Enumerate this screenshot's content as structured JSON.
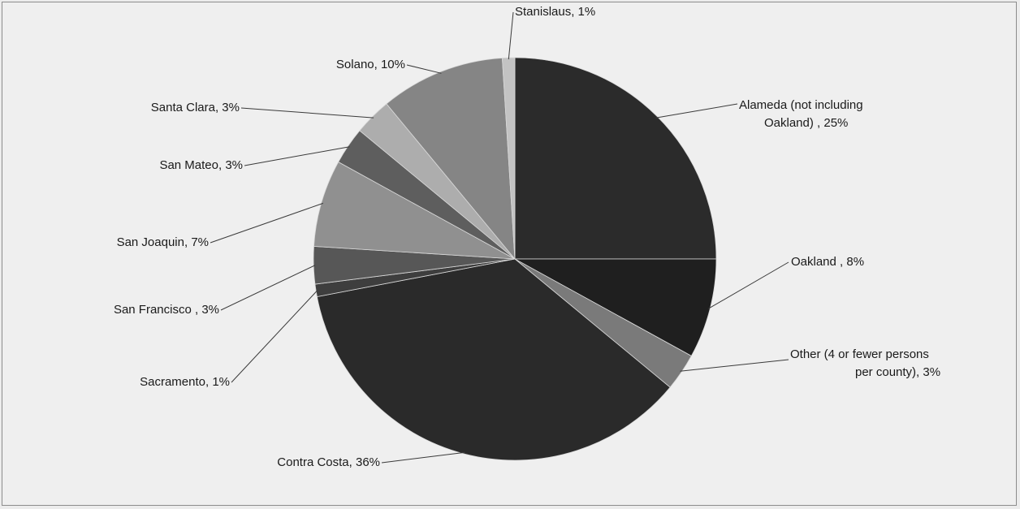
{
  "chart_data": {
    "type": "pie",
    "title": "",
    "start_angle_deg": 0,
    "direction": "clockwise",
    "slices": [
      {
        "label": [
          "Alameda (not including",
          "Oakland) , 25%"
        ],
        "value": 25,
        "color": "#2b2b2b"
      },
      {
        "label": [
          "Oakland , 8%"
        ],
        "value": 8,
        "color": "#1f1f1f"
      },
      {
        "label": [
          "Other (4 or fewer persons",
          "per county), 3%"
        ],
        "value": 3,
        "color": "#7a7a7a"
      },
      {
        "label": [
          "Contra Costa, 36%"
        ],
        "value": 36,
        "color": "#2a2a2a"
      },
      {
        "label": [
          "Sacramento, 1%"
        ],
        "value": 1,
        "color": "#3e3e3e"
      },
      {
        "label": [
          "San Francisco , 3%"
        ],
        "value": 3,
        "color": "#575757"
      },
      {
        "label": [
          "San Joaquin, 7%"
        ],
        "value": 7,
        "color": "#909090"
      },
      {
        "label": [
          "San Mateo, 3%"
        ],
        "value": 3,
        "color": "#5e5e5e"
      },
      {
        "label": [
          "Santa Clara, 3%"
        ],
        "value": 3,
        "color": "#adadad"
      },
      {
        "label": [
          "Solano, 10%"
        ],
        "value": 10,
        "color": "#858585"
      },
      {
        "label": [
          "Stanislaus, 1%"
        ],
        "value": 1,
        "color": "#c3c3c3"
      }
    ]
  }
}
